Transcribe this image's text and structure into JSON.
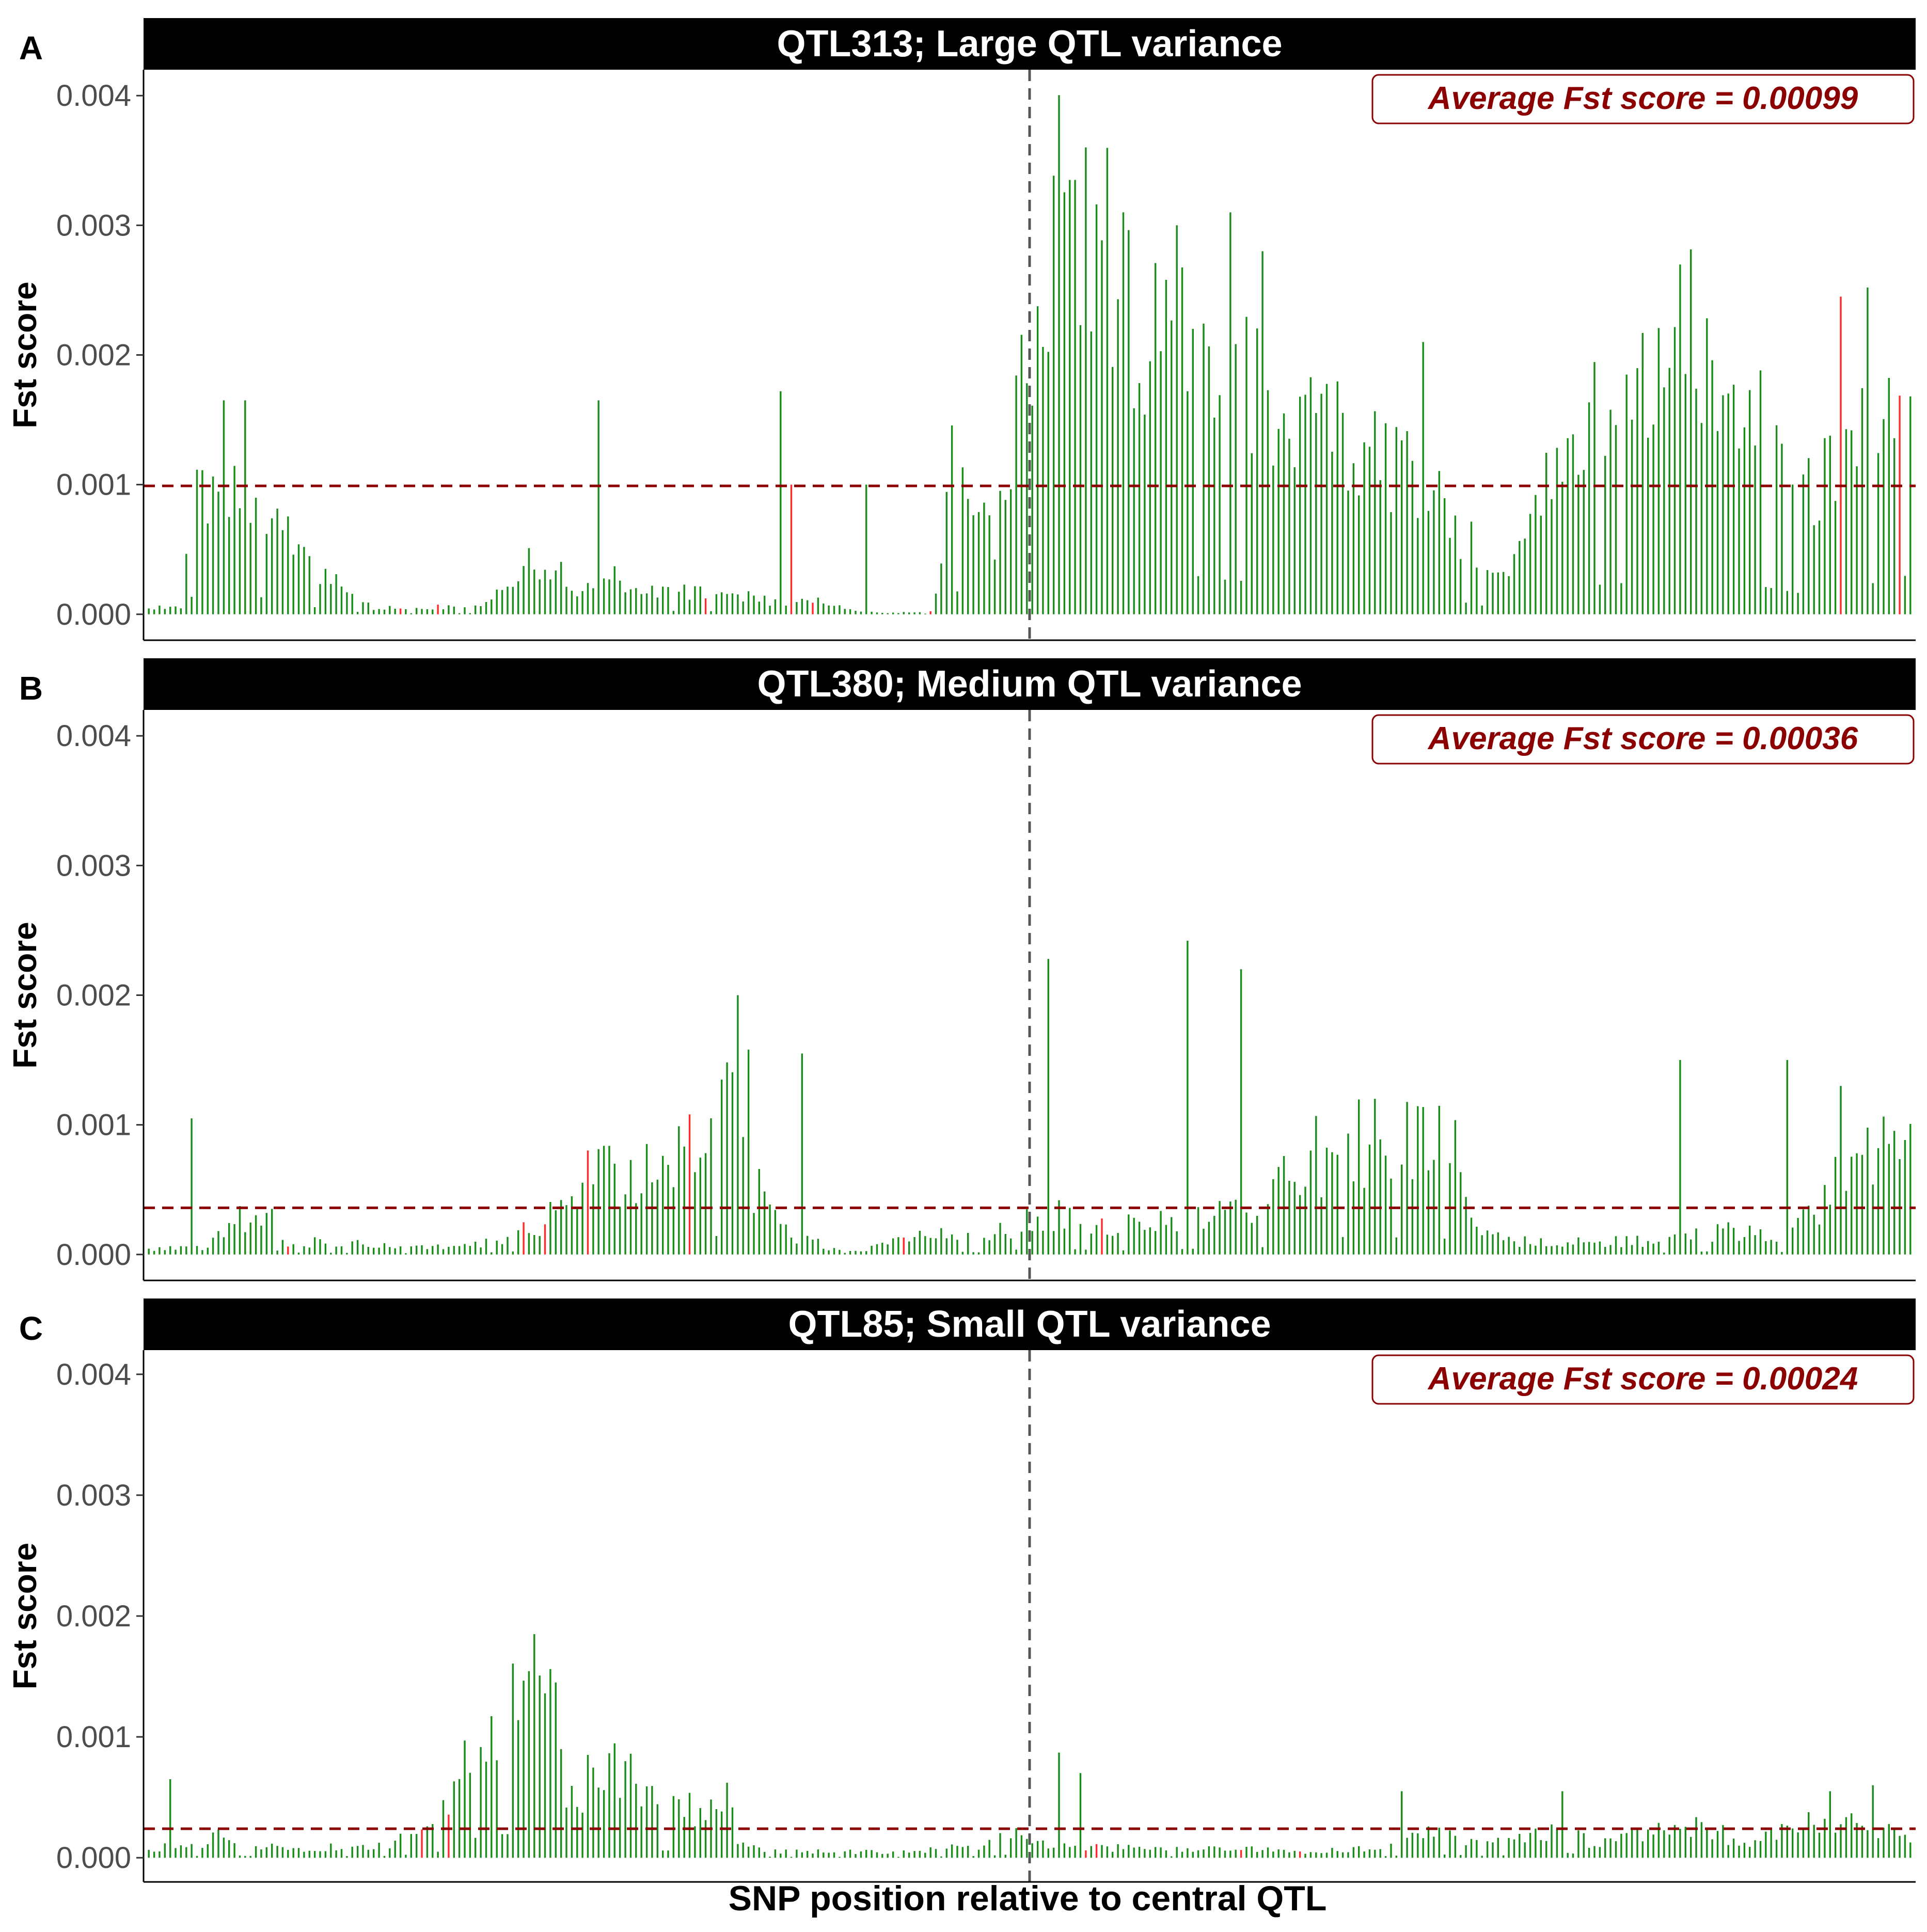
{
  "figure": {
    "x_axis_title": "SNP position relative to central QTL"
  },
  "colors": {
    "bar_normal": "#1a8c1a",
    "bar_highlight": "#ff2a2a",
    "average_line": "#8b0000",
    "qtl_line": "#555555",
    "strip_background": "#000000",
    "strip_text": "#ffffff",
    "annotation_text": "#8b0000"
  },
  "chart_data": [
    {
      "type": "bar",
      "panel_label": "A",
      "title": "QTL313; Large QTL variance",
      "ylabel": "Fst score",
      "xlabel": "",
      "ylim": [
        -0.0002,
        0.0042
      ],
      "yticks": [
        "0.000",
        "0.001",
        "0.002",
        "0.003",
        "0.004"
      ],
      "grid": false,
      "average_fst": 0.00099,
      "annotation": "Average Fst score =  0.00099",
      "central_qtl_position": 0.5,
      "n_snps": 330,
      "highlight_indices": [
        68,
        78,
        151,
        175,
        180,
        213,
        460,
        475
      ],
      "anchors": [
        [
          0,
          5e-05
        ],
        [
          6,
          5e-05
        ],
        [
          8,
          0.0009
        ],
        [
          12,
          0.0009
        ],
        [
          20,
          0.0009
        ],
        [
          24,
          0.0008
        ],
        [
          30,
          0.0004
        ],
        [
          36,
          0.0002
        ],
        [
          42,
          5e-05
        ],
        [
          60,
          6e-05
        ],
        [
          68,
          0.0002
        ],
        [
          70,
          0.00045
        ],
        [
          76,
          0.00035
        ],
        [
          80,
          0.0002
        ],
        [
          86,
          0.0003
        ],
        [
          92,
          0.0002
        ],
        [
          96,
          0.00018
        ],
        [
          110,
          0.00015
        ],
        [
          116,
          0.0001
        ],
        [
          126,
          0.0001
        ],
        [
          132,
          3e-05
        ],
        [
          138,
          1e-05
        ],
        [
          146,
          2e-05
        ],
        [
          148,
          0.0004
        ],
        [
          150,
          0.0013
        ],
        [
          154,
          0.0008
        ],
        [
          158,
          0.0005
        ],
        [
          160,
          0.0013
        ],
        [
          164,
          0.0018
        ],
        [
          166,
          0.0024
        ],
        [
          168,
          0.0027
        ],
        [
          170,
          0.003
        ],
        [
          174,
          0.0032
        ],
        [
          178,
          0.003
        ],
        [
          182,
          0.0025
        ],
        [
          190,
          0.0022
        ],
        [
          200,
          0.0018
        ],
        [
          210,
          0.0016
        ],
        [
          220,
          0.0015
        ],
        [
          230,
          0.0012
        ],
        [
          240,
          0.0009
        ],
        [
          250,
          0.0004
        ],
        [
          256,
          0.00045
        ],
        [
          262,
          0.0011
        ],
        [
          270,
          0.0015
        ],
        [
          280,
          0.0017
        ],
        [
          288,
          0.0021
        ],
        [
          296,
          0.0017
        ],
        [
          304,
          0.0013
        ],
        [
          310,
          0.001
        ],
        [
          316,
          0.0011
        ],
        [
          322,
          0.0016
        ],
        [
          330,
          0.0021
        ]
      ],
      "variability": 0.35,
      "spikes": [
        [
          14,
          0.00165
        ],
        [
          18,
          0.00165
        ],
        [
          84,
          0.00165
        ],
        [
          118,
          0.00172
        ],
        [
          120,
          0.001
        ],
        [
          134,
          0.001
        ],
        [
          172,
          0.00335
        ],
        [
          173,
          0.00335
        ],
        [
          182,
          0.0031
        ],
        [
          192,
          0.003
        ],
        [
          202,
          0.0031
        ],
        [
          208,
          0.0028
        ],
        [
          238,
          0.0021
        ],
        [
          316,
          0.00245
        ],
        [
          321,
          0.00252
        ]
      ],
      "seed": 313
    },
    {
      "type": "bar",
      "panel_label": "B",
      "title": "QTL380; Medium QTL variance",
      "ylabel": "Fst score",
      "xlabel": "",
      "ylim": [
        -0.0002,
        0.0042
      ],
      "yticks": [
        "0.000",
        "0.001",
        "0.002",
        "0.003",
        "0.004"
      ],
      "grid": false,
      "average_fst": 0.00036,
      "annotation": "Average Fst score =  0.00036",
      "central_qtl_position": 0.5,
      "n_snps": 330,
      "highlight_indices": [
        38,
        102,
        108,
        119,
        147,
        205,
        259
      ],
      "anchors": [
        [
          0,
          5e-05
        ],
        [
          10,
          5e-05
        ],
        [
          16,
          0.00025
        ],
        [
          22,
          0.0003
        ],
        [
          26,
          0.0001
        ],
        [
          40,
          8e-05
        ],
        [
          58,
          5e-05
        ],
        [
          72,
          0.0002
        ],
        [
          78,
          0.0004
        ],
        [
          82,
          0.0006
        ],
        [
          92,
          0.0006
        ],
        [
          98,
          0.0007
        ],
        [
          104,
          0.0008
        ],
        [
          108,
          0.0011
        ],
        [
          112,
          0.0006
        ],
        [
          118,
          0.0002
        ],
        [
          124,
          0.0001
        ],
        [
          130,
          1e-05
        ],
        [
          140,
          0.0001
        ],
        [
          146,
          0.0002
        ],
        [
          156,
          0.0001
        ],
        [
          164,
          0.0003
        ],
        [
          170,
          0.0003
        ],
        [
          180,
          0.0002
        ],
        [
          196,
          0.0003
        ],
        [
          206,
          0.0003
        ],
        [
          216,
          0.0007
        ],
        [
          222,
          0.0009
        ],
        [
          230,
          0.0009
        ],
        [
          244,
          0.0008
        ],
        [
          248,
          0.0002
        ],
        [
          256,
          0.0001
        ],
        [
          270,
          0.0001
        ],
        [
          284,
          0.0001
        ],
        [
          296,
          0.0002
        ],
        [
          304,
          0.0001
        ],
        [
          310,
          0.0003
        ],
        [
          316,
          0.0006
        ],
        [
          322,
          0.0009
        ],
        [
          330,
          0.0008
        ]
      ],
      "variability": 0.45,
      "spikes": [
        [
          110,
          0.002
        ],
        [
          112,
          0.00158
        ],
        [
          122,
          0.00155
        ],
        [
          168,
          0.00228
        ],
        [
          194,
          0.00242
        ],
        [
          204,
          0.0022
        ],
        [
          286,
          0.0015
        ],
        [
          306,
          0.0015
        ],
        [
          316,
          0.0013
        ],
        [
          8,
          0.00105
        ]
      ],
      "seed": 380
    },
    {
      "type": "bar",
      "panel_label": "C",
      "title": "QTL85; Small QTL variance",
      "ylabel": "Fst score",
      "xlabel": "SNP position relative to central QTL",
      "ylim": [
        -0.0002,
        0.0042
      ],
      "yticks": [
        "0.000",
        "0.001",
        "0.002",
        "0.003",
        "0.004"
      ],
      "grid": false,
      "average_fst": 0.00024,
      "annotation": "Average Fst score =  0.00024",
      "central_qtl_position": 0.5,
      "n_snps": 330,
      "highlight_indices": [
        74,
        82,
        255,
        258,
        296,
        313
      ],
      "anchors": [
        [
          0,
          8e-05
        ],
        [
          10,
          0.0001
        ],
        [
          14,
          0.0002
        ],
        [
          18,
          0.0001
        ],
        [
          30,
          8e-05
        ],
        [
          44,
          0.0001
        ],
        [
          50,
          0.0002
        ],
        [
          56,
          0.0004
        ],
        [
          58,
          0.0008
        ],
        [
          62,
          0.0012
        ],
        [
          66,
          0.0013
        ],
        [
          72,
          0.0013
        ],
        [
          76,
          0.0011
        ],
        [
          78,
          0.0005
        ],
        [
          84,
          0.0007
        ],
        [
          90,
          0.0008
        ],
        [
          96,
          0.0004
        ],
        [
          104,
          0.0004
        ],
        [
          108,
          0.0005
        ],
        [
          110,
          0.0001
        ],
        [
          118,
          5e-05
        ],
        [
          130,
          5e-05
        ],
        [
          140,
          5e-05
        ],
        [
          150,
          8e-05
        ],
        [
          156,
          0.0001
        ],
        [
          162,
          0.0002
        ],
        [
          168,
          0.0001
        ],
        [
          180,
          8e-05
        ],
        [
          200,
          8e-05
        ],
        [
          216,
          5e-05
        ],
        [
          230,
          8e-05
        ],
        [
          240,
          0.0002
        ],
        [
          250,
          0.0001
        ],
        [
          260,
          0.0002
        ],
        [
          264,
          0.0003
        ],
        [
          270,
          0.0001
        ],
        [
          280,
          0.0002
        ],
        [
          290,
          0.0003
        ],
        [
          298,
          0.0001
        ],
        [
          304,
          0.0002
        ],
        [
          312,
          0.0003
        ],
        [
          320,
          0.0003
        ],
        [
          330,
          0.0001
        ]
      ],
      "variability": 0.4,
      "spikes": [
        [
          72,
          0.00185
        ],
        [
          76,
          0.00145
        ],
        [
          4,
          0.00065
        ],
        [
          170,
          0.00087
        ],
        [
          174,
          0.0007
        ],
        [
          234,
          0.00055
        ],
        [
          264,
          0.00055
        ],
        [
          314,
          0.00055
        ],
        [
          322,
          0.0006
        ]
      ],
      "seed": 85
    }
  ]
}
